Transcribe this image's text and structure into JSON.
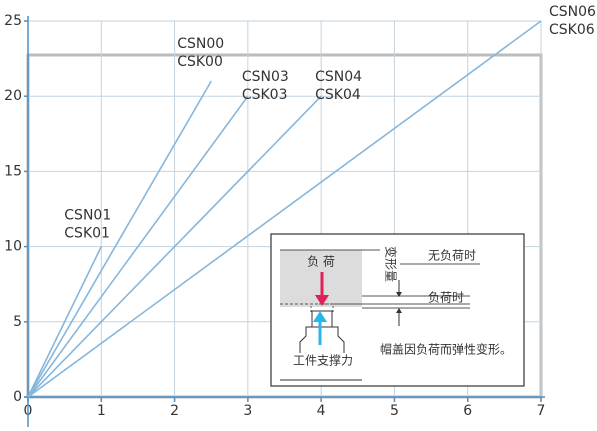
{
  "chart_data": {
    "type": "line",
    "xlim": [
      0,
      7
    ],
    "xticks": [
      0,
      1,
      2,
      3,
      4,
      5,
      6,
      7
    ],
    "ylim": [
      0,
      25
    ],
    "yticks": [
      0,
      5,
      10,
      15,
      20,
      25
    ],
    "grid": true,
    "series": [
      {
        "labels": [
          "CSN01",
          "CSK01"
        ],
        "color": "#86b6dc",
        "x": [
          0,
          1
        ],
        "values": [
          0,
          10
        ]
      },
      {
        "labels": [
          "CSN00",
          "CSK00"
        ],
        "color": "#86b6dc",
        "x": [
          0,
          2.5
        ],
        "values": [
          0,
          21
        ]
      },
      {
        "labels": [
          "CSN03",
          "CSK03"
        ],
        "color": "#86b6dc",
        "x": [
          0,
          3
        ],
        "values": [
          0,
          20
        ]
      },
      {
        "labels": [
          "CSN04",
          "CSK04"
        ],
        "color": "#86b6dc",
        "x": [
          0,
          4
        ],
        "values": [
          0,
          20
        ]
      },
      {
        "labels": [
          "CSN06",
          "CSK06"
        ],
        "color": "#86b6dc",
        "x": [
          0,
          7
        ],
        "values": [
          0,
          25
        ]
      }
    ],
    "inset": {
      "load": "负 荷",
      "deform": "变形量",
      "no_load": "无负荷时",
      "under_load": "负荷时",
      "note": "帽盖因负荷而弹性变形。",
      "support": "工件支撑力"
    }
  }
}
